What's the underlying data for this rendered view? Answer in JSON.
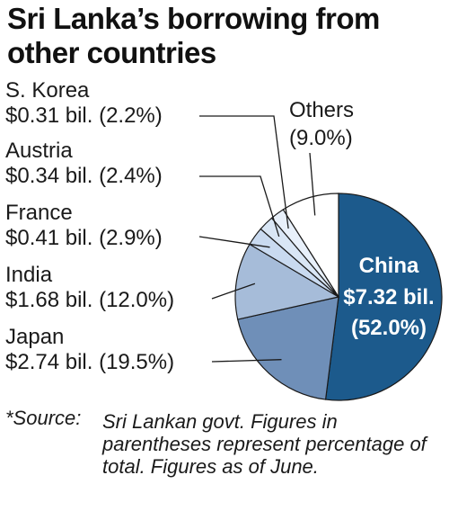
{
  "title": "Sri Lanka’s borrowing from other countries",
  "chart_data": {
    "type": "pie",
    "title": "Sri Lanka’s borrowing from other countries",
    "unit": "bil.",
    "slices": [
      {
        "name": "China",
        "value_label": "$7.32 bil.",
        "pct_label": "(52.0%)",
        "value": 7.32,
        "pct": 52.0,
        "color": "#1c5a8c"
      },
      {
        "name": "Japan",
        "value_label": "$2.74 bil. (19.5%)",
        "value": 2.74,
        "pct": 19.5,
        "color": "#6f8fb8"
      },
      {
        "name": "India",
        "value_label": "$1.68 bil. (12.0%)",
        "value": 1.68,
        "pct": 12.0,
        "color": "#a6bcd9"
      },
      {
        "name": "France",
        "value_label": "$0.41 bil. (2.9%)",
        "value": 0.41,
        "pct": 2.9,
        "color": "#c9daf0"
      },
      {
        "name": "Austria",
        "value_label": "$0.34 bil. (2.4%)",
        "value": 0.34,
        "pct": 2.4,
        "color": "#d9e6f5"
      },
      {
        "name": "S. Korea",
        "value_label": "$0.31 bil. (2.2%)",
        "value": 0.31,
        "pct": 2.2,
        "color": "#e8f0fa"
      },
      {
        "name": "Others",
        "value_label": "(9.0%)",
        "value": null,
        "pct": 9.0,
        "color": "#ffffff"
      }
    ]
  },
  "source": {
    "tag": "*Source:",
    "text": "Sri Lankan govt. Figures in parentheses represent percentage of total. Figures as of June."
  }
}
